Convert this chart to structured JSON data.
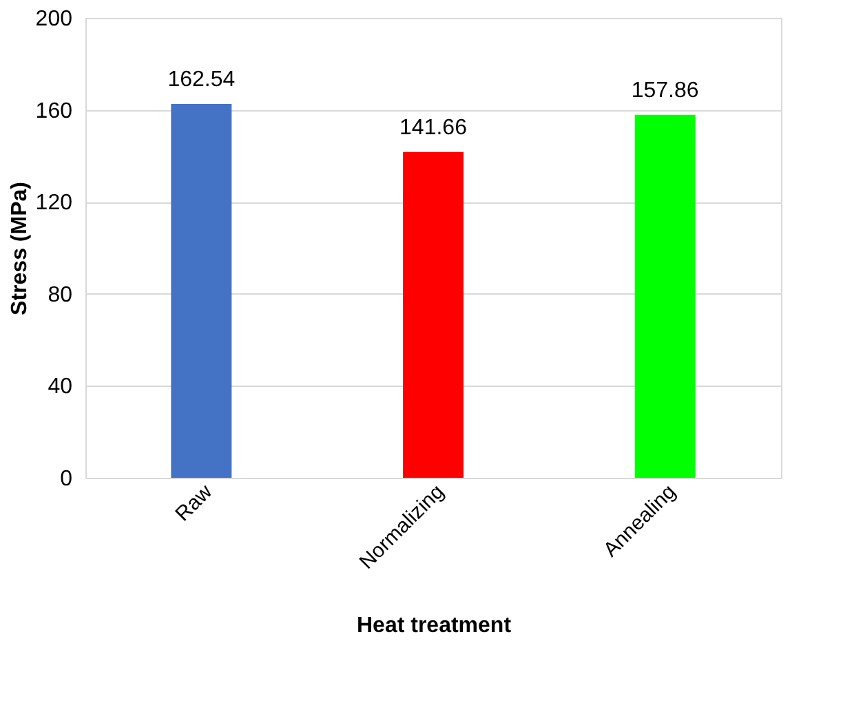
{
  "chart_data": {
    "type": "bar",
    "xlabel": "Heat treatment",
    "ylabel": "Stress  (MPa)",
    "categories": [
      "Raw",
      "Normalizing",
      "Annealing"
    ],
    "values": [
      162.54,
      141.66,
      157.86
    ],
    "colors": [
      "#4472c4",
      "#ff0000",
      "#00ff00"
    ],
    "ylim": [
      0,
      200
    ],
    "yticks": [
      0,
      40,
      80,
      120,
      160,
      200
    ],
    "grid": "y",
    "data_labels": true
  }
}
